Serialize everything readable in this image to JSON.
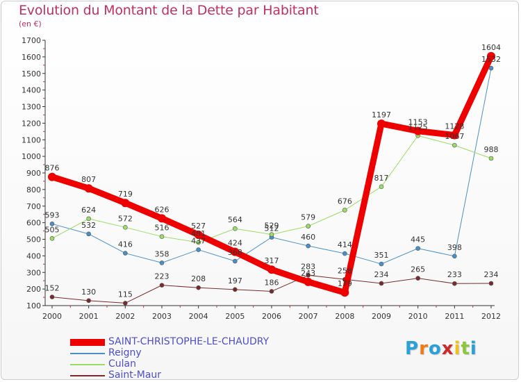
{
  "title": "Evolution du Montant de la Dette par Habitant",
  "unit": "(en €)",
  "logo": {
    "text": "Proxiti",
    "colors": [
      "#2a9fd8",
      "#f07a1a",
      "#2a9fd8",
      "#cc2a2a",
      "#f0c020",
      "#8cc63f",
      "#2a9fd8"
    ]
  },
  "chart_data": {
    "type": "line",
    "x": [
      "2000",
      "2001",
      "2002",
      "2003",
      "2004",
      "2005",
      "2006",
      "2007",
      "2008",
      "2009",
      "2010",
      "2011",
      "2012"
    ],
    "ylim": [
      100,
      1700
    ],
    "yticks": [
      100,
      200,
      300,
      400,
      500,
      600,
      700,
      800,
      900,
      1000,
      1100,
      1200,
      1300,
      1400,
      1500,
      1600,
      1700
    ],
    "grid": false,
    "legend_position": "bottom-left",
    "series": [
      {
        "name": "SAINT-CHRISTOPHE-LE-CHAUDRY",
        "color": "#ee0000",
        "width": 9,
        "values": [
          876,
          807,
          719,
          626,
          527,
          424,
          317,
          243,
          179,
          1197,
          1153,
          1128,
          1604
        ],
        "labels": [
          "876",
          "807",
          "719",
          "626",
          "527",
          "424",
          "317",
          "243",
          "179",
          "1197",
          "1153",
          "1128",
          "1604"
        ]
      },
      {
        "name": "Reigny",
        "color": "#4a90c8",
        "width": 1,
        "values": [
          593,
          532,
          416,
          358,
          437,
          368,
          512,
          460,
          414,
          351,
          445,
          398,
          1532
        ],
        "labels": [
          "593",
          "532",
          "416",
          "358",
          "437",
          "368",
          "512",
          "460",
          "414",
          "351",
          "445",
          "398",
          "1532"
        ]
      },
      {
        "name": "Culan",
        "color": "#99dd66",
        "width": 1,
        "values": [
          505,
          624,
          572,
          516,
          481,
          564,
          529,
          579,
          676,
          817,
          1125,
          1067,
          988
        ],
        "labels": [
          "505",
          "624",
          "572",
          "516",
          "481",
          "564",
          "529",
          "579",
          "676",
          "817",
          "1125",
          "1067",
          "988"
        ]
      },
      {
        "name": "Saint-Maur",
        "color": "#7a2a2a",
        "width": 1,
        "values": [
          152,
          130,
          115,
          223,
          208,
          197,
          186,
          283,
          258,
          234,
          265,
          233,
          234
        ],
        "labels": [
          "152",
          "130",
          "115",
          "223",
          "208",
          "197",
          "186",
          "283",
          "258",
          "234",
          "265",
          "233",
          "234"
        ]
      }
    ]
  }
}
